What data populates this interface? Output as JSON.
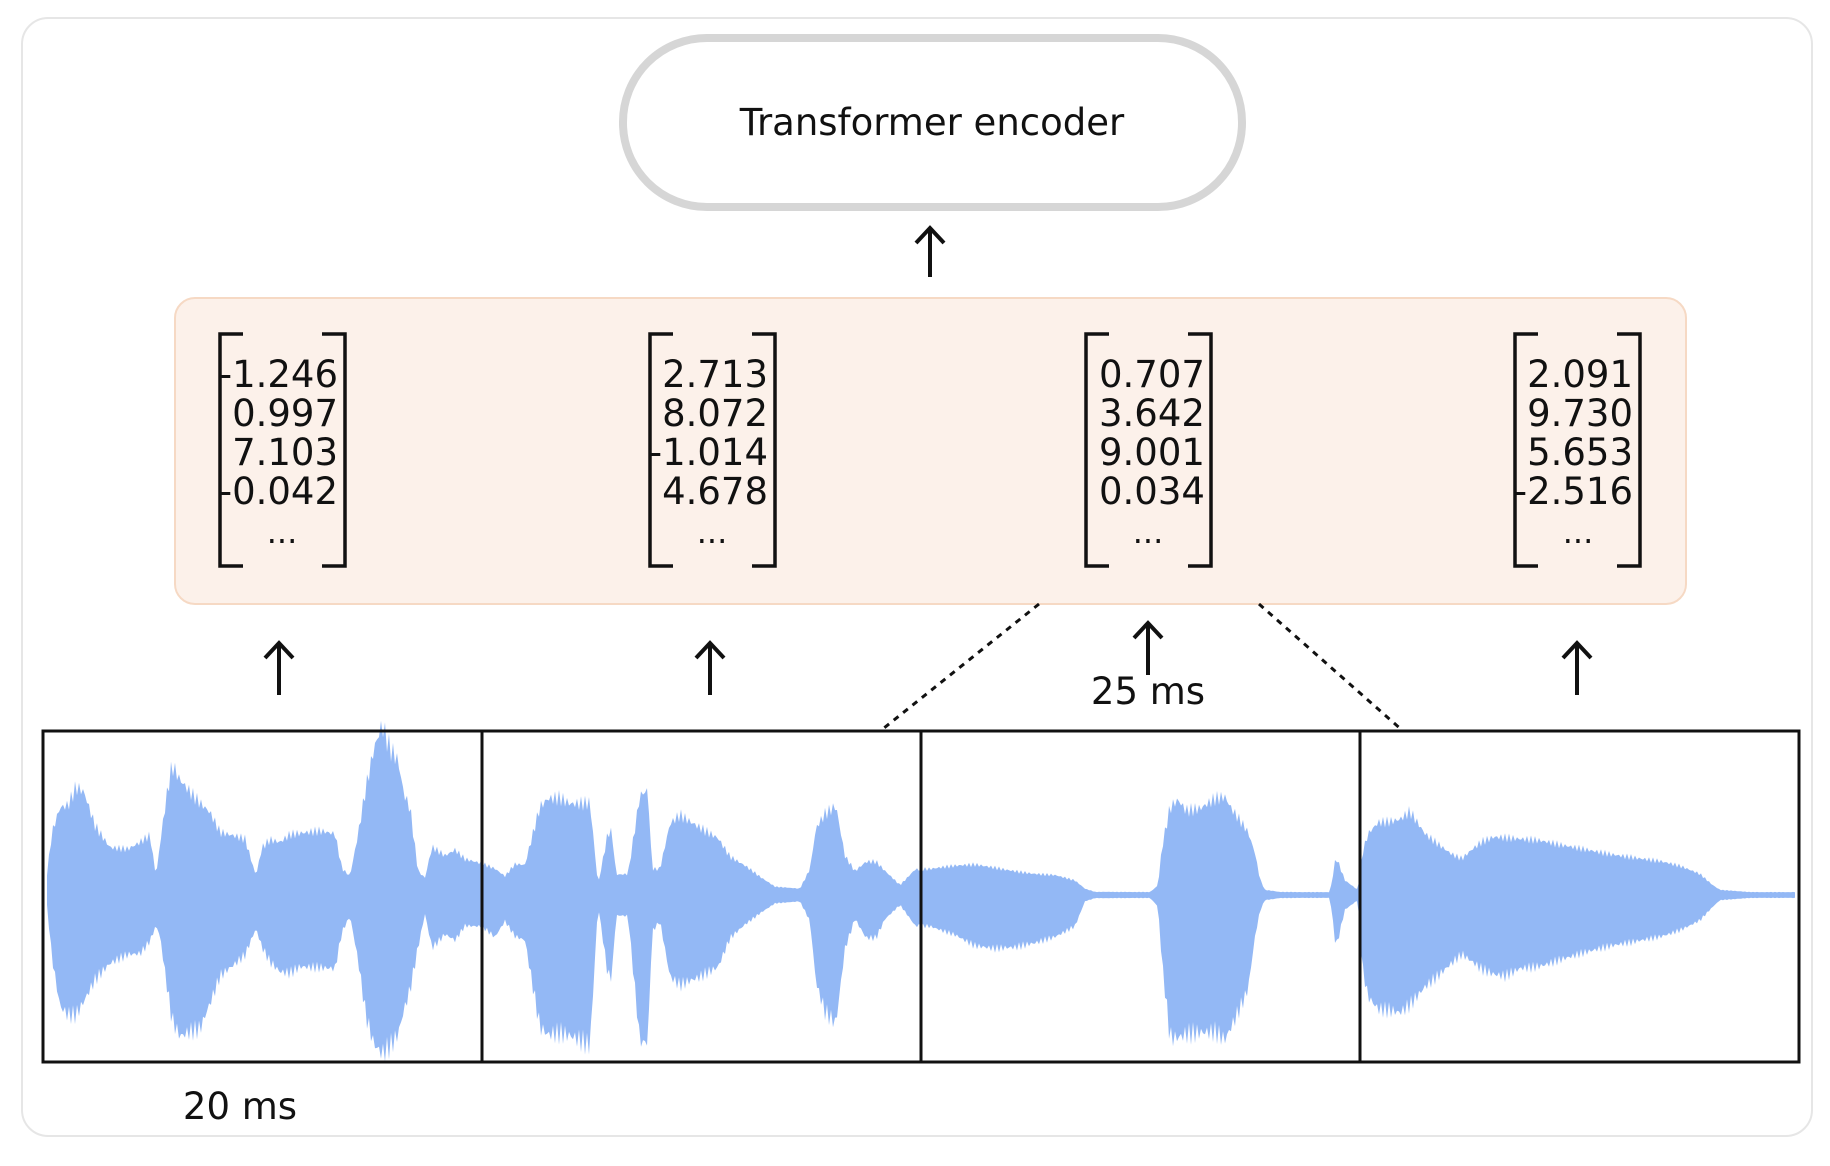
{
  "encoder": {
    "label": "Transformer encoder"
  },
  "vectors": [
    {
      "values": [
        "-1.246",
        " 0.997",
        " 7.103",
        "-0.042"
      ],
      "ellipsis": "..."
    },
    {
      "values": [
        " 2.713",
        " 8.072",
        "-1.014",
        " 4.678"
      ],
      "ellipsis": "..."
    },
    {
      "values": [
        "0.707",
        "3.642",
        "9.001",
        "0.034"
      ],
      "ellipsis": "..."
    },
    {
      "values": [
        " 2.091",
        " 9.730",
        " 5.653",
        "-2.516"
      ],
      "ellipsis": "..."
    }
  ],
  "labels": {
    "frame_stride": "20 ms",
    "window_length": "25 ms"
  },
  "colors": {
    "waveform": "#93b8f5",
    "embedding_panel_fill": "#fcf1ea",
    "embedding_panel_stroke": "#f6d9c4",
    "encoder_stroke": "#d6d6d6",
    "ink": "#111111"
  }
}
